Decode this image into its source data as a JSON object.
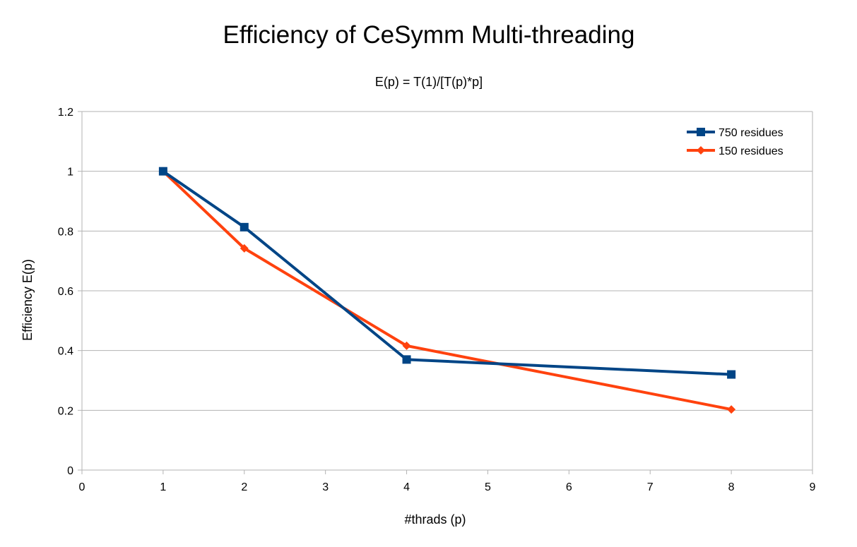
{
  "chart_data": {
    "type": "line",
    "title": "Efficiency of CeSymm Multi-threading",
    "subtitle": "E(p) = T(1)/[T(p)*p]",
    "xlabel": "#thrads (p)",
    "ylabel": "Efficiency E(p)",
    "xlim": [
      0,
      9
    ],
    "ylim": [
      0,
      1.2
    ],
    "x_ticks": [
      "0",
      "1",
      "2",
      "3",
      "4",
      "5",
      "6",
      "7",
      "8",
      "9"
    ],
    "y_ticks": [
      "0",
      "0.2",
      "0.4",
      "0.6",
      "0.8",
      "1",
      "1.2"
    ],
    "grid": "horizontal",
    "legend_position": "top-right",
    "series": [
      {
        "name": "750 residues",
        "color": "#004586",
        "marker": "square",
        "x": [
          1,
          2,
          4,
          8
        ],
        "values": [
          1.0,
          0.813,
          0.37,
          0.32
        ]
      },
      {
        "name": "150 residues",
        "color": "#ff420e",
        "marker": "diamond",
        "x": [
          1,
          2,
          4,
          8
        ],
        "values": [
          1.0,
          0.742,
          0.416,
          0.203
        ]
      }
    ]
  }
}
